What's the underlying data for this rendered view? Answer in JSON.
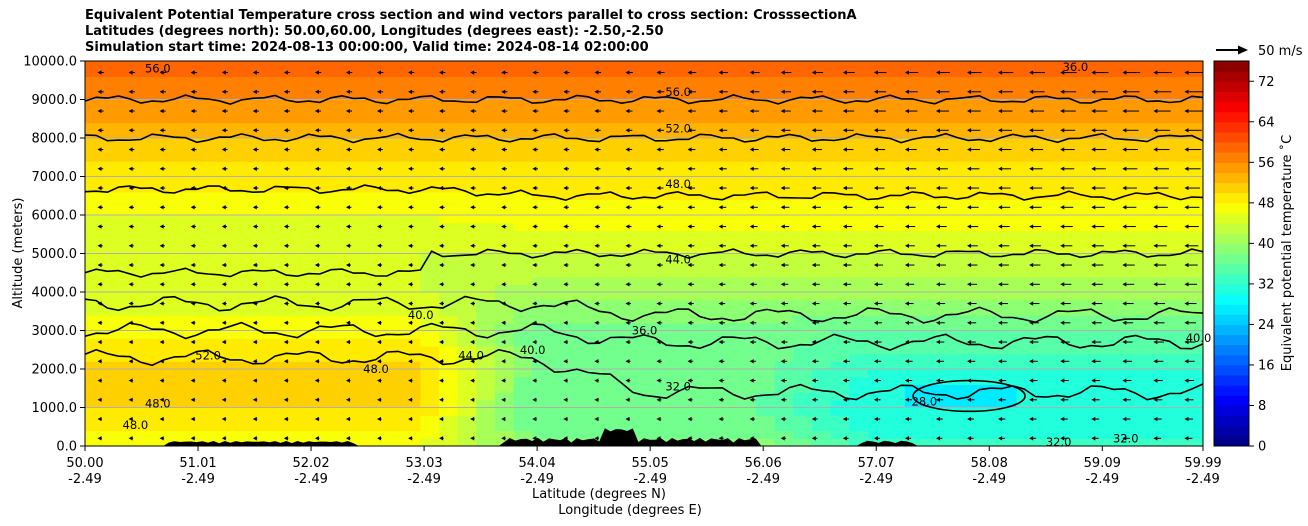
{
  "figure": {
    "title_lines": [
      "Equivalent Potential Temperature cross section and wind vectors parallel to cross section: CrosssectionA",
      "Latitudes (degrees north): 50.00,60.00, Longitudes (degrees east): -2.50,-2.50",
      "Simulation start time: 2024-08-13 00:00:00, Valid time: 2024-08-14 02:00:00"
    ]
  },
  "chart_data": {
    "type": "heatmap",
    "subtype": "filled contour cross-section with contour lines and wind vectors",
    "ylabel": "Altitude (meters)",
    "xlabel_lines": [
      "Latitude (degrees N)",
      "Longitude (degrees E)"
    ],
    "ylim": [
      0,
      10000
    ],
    "xlim": [
      50.0,
      59.99
    ],
    "y_ticks": [
      "0.0",
      "1000.0",
      "2000.0",
      "3000.0",
      "4000.0",
      "5000.0",
      "6000.0",
      "7000.0",
      "8000.0",
      "9000.0",
      "10000.0"
    ],
    "x_ticks": [
      {
        "lat": "50.00",
        "lon": "-2.49"
      },
      {
        "lat": "51.01",
        "lon": "-2.49"
      },
      {
        "lat": "52.02",
        "lon": "-2.49"
      },
      {
        "lat": "53.03",
        "lon": "-2.49"
      },
      {
        "lat": "54.04",
        "lon": "-2.49"
      },
      {
        "lat": "55.05",
        "lon": "-2.49"
      },
      {
        "lat": "56.06",
        "lon": "-2.49"
      },
      {
        "lat": "57.07",
        "lon": "-2.49"
      },
      {
        "lat": "58.08",
        "lon": "-2.49"
      },
      {
        "lat": "59.09",
        "lon": "-2.49"
      },
      {
        "lat": "59.99",
        "lon": "-2.49"
      }
    ],
    "grid": "horizontal only",
    "colorbar": {
      "label": "Equivalent potential temperature $^\\circ$C",
      "label_display": "Equivalent potential temperature ˚C",
      "range": [
        0,
        76
      ],
      "ticks": [
        "0",
        "8",
        "16",
        "24",
        "32",
        "40",
        "48",
        "56",
        "64",
        "72"
      ],
      "colormap": "jet",
      "levels": 38
    },
    "wind_reference": {
      "label": "50 m/s",
      "value": 50
    },
    "theta_e_profile": {
      "altitude_m": [
        0,
        500,
        1000,
        2000,
        3000,
        4000,
        5000,
        6000,
        7000,
        8000,
        9000,
        10000
      ],
      "lat_50_to_53_C": [
        46,
        48,
        50,
        51,
        47,
        44,
        44,
        46,
        49,
        52,
        56,
        59
      ],
      "lat_53_to_56_C": [
        39,
        37,
        36,
        37,
        37,
        41,
        44,
        47,
        49,
        52,
        56,
        59
      ],
      "lat_56_to_60_C": [
        33,
        31,
        30,
        32,
        36,
        41,
        44,
        47,
        49,
        52,
        56,
        59
      ]
    },
    "cold_core": {
      "lat_range": [
        57.4,
        58.4
      ],
      "alt_range_m": [
        900,
        1700
      ],
      "value_C": 27
    },
    "contour_labels": [
      {
        "text": "56.0",
        "lat": 50.65,
        "alt": 9800
      },
      {
        "text": "56.0",
        "lat": 55.3,
        "alt": 9200
      },
      {
        "text": "52.0",
        "lat": 55.3,
        "alt": 8250
      },
      {
        "text": "48.0",
        "lat": 55.3,
        "alt": 6800
      },
      {
        "text": "44.0",
        "lat": 55.3,
        "alt": 4850
      },
      {
        "text": "36.0",
        "lat": 55.0,
        "alt": 3000
      },
      {
        "text": "40.0",
        "lat": 53.0,
        "alt": 3400
      },
      {
        "text": "52.0",
        "lat": 51.1,
        "alt": 2350
      },
      {
        "text": "48.0",
        "lat": 52.6,
        "alt": 2000
      },
      {
        "text": "44.0",
        "lat": 53.45,
        "alt": 2350
      },
      {
        "text": "40.0",
        "lat": 54.0,
        "alt": 2500
      },
      {
        "text": "48.0",
        "lat": 50.65,
        "alt": 1100
      },
      {
        "text": "48.0",
        "lat": 50.45,
        "alt": 550
      },
      {
        "text": "32.0",
        "lat": 55.3,
        "alt": 1550
      },
      {
        "text": "28.0",
        "lat": 57.5,
        "alt": 1150
      },
      {
        "text": "40.0",
        "lat": 59.95,
        "alt": 2800
      },
      {
        "text": "36.0",
        "lat": 58.85,
        "alt": 9850
      },
      {
        "text": "32.0",
        "lat": 58.7,
        "alt": 100
      },
      {
        "text": "32.0",
        "lat": 59.3,
        "alt": 200
      }
    ],
    "terrain_note": "black orography along surface"
  },
  "colors": {
    "contour_line": "#000000",
    "terrain": "#000000",
    "grid": "#b0b0b0"
  }
}
